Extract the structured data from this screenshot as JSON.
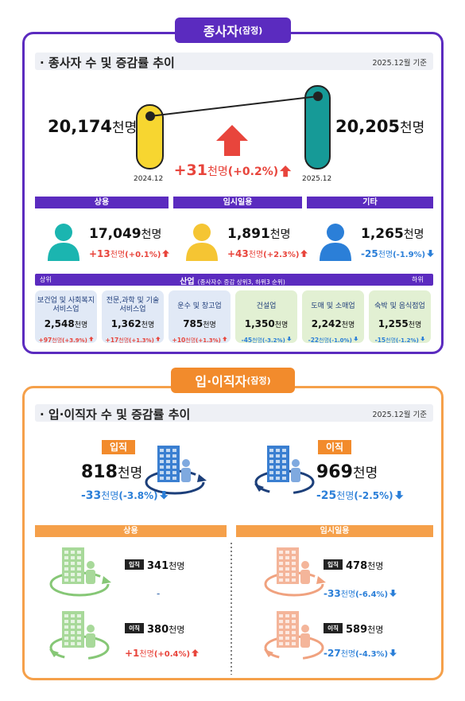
{
  "employees": {
    "badge": {
      "title": "종사자",
      "note": "(잠정)"
    },
    "header": {
      "title": "· 종사자 수 및 증감률 추이",
      "basis": "2025.12월 기준"
    },
    "total": {
      "before": {
        "number": "20,174",
        "unit": "천명",
        "period": "2024.12"
      },
      "after": {
        "number": "20,205",
        "unit": "천명",
        "period": "2025.12"
      },
      "change": {
        "number": "+31",
        "unit": "천명",
        "rate": "(+0.2%)"
      }
    },
    "types": [
      {
        "name": "상용",
        "number": "17,049",
        "unit": "천명",
        "change": {
          "number": "+13",
          "unit": "천명",
          "rate": "(+0.1%)"
        }
      },
      {
        "name": "임시일용",
        "number": "1,891",
        "unit": "천명",
        "change": {
          "number": "+43",
          "unit": "천명",
          "rate": "(+2.3%)"
        }
      },
      {
        "name": "기타",
        "number": "1,265",
        "unit": "천명",
        "change": {
          "number": "-25",
          "unit": "천명",
          "rate": "(-1.9%)"
        }
      }
    ],
    "industry": {
      "top": "상위",
      "title": "산업",
      "note": "(종사자수 증감 상위3, 하위3 순위)",
      "bottom": "하위",
      "items": [
        {
          "name": [
            "보건업 및 사회복지",
            "서비스업"
          ],
          "number": "2,548",
          "unit": "천명",
          "change": {
            "number": "+97",
            "unit": "천명",
            "rate": "(+3.9%)"
          }
        },
        {
          "name": [
            "전문,과학 및 기술",
            "서비스업"
          ],
          "number": "1,362",
          "unit": "천명",
          "change": {
            "number": "+17",
            "unit": "천명",
            "rate": "(+1.3%)"
          }
        },
        {
          "name": [
            "운수 및 창고업"
          ],
          "number": "785",
          "unit": "천명",
          "change": {
            "number": "+10",
            "unit": "천명",
            "rate": "(+1.3%)"
          }
        },
        {
          "name": [
            "건설업"
          ],
          "number": "1,350",
          "unit": "천명",
          "change": {
            "number": "-45",
            "unit": "천명",
            "rate": "(-3.2%)"
          }
        },
        {
          "name": [
            "도매 및 소매업"
          ],
          "number": "2,242",
          "unit": "천명",
          "change": {
            "number": "-22",
            "unit": "천명",
            "rate": "(-1.0%)"
          }
        },
        {
          "name": [
            "숙박 및 음식점업"
          ],
          "number": "1,255",
          "unit": "천명",
          "change": {
            "number": "-15",
            "unit": "천명",
            "rate": "(-1.2%)"
          }
        }
      ]
    }
  },
  "turnover": {
    "badge": {
      "title": "입·이직자",
      "note": "(잠정)"
    },
    "header": {
      "title": "· 입·이직자 수 및 증감률 추이",
      "basis": "2025.12월 기준"
    },
    "inflow": {
      "label": "입직",
      "number": "818",
      "unit": "천명",
      "change": {
        "number": "-33",
        "unit": "천명",
        "rate": "(-3.8%)"
      }
    },
    "outflow": {
      "label": "이직",
      "number": "969",
      "unit": "천명",
      "change": {
        "number": "-25",
        "unit": "천명",
        "rate": "(-2.5%)"
      }
    },
    "groups": [
      {
        "name": "상용",
        "inflow": {
          "label": "입직",
          "number": "341",
          "unit": "천명",
          "change": "-"
        },
        "outflow": {
          "label": "이직",
          "number": "380",
          "unit": "천명",
          "change": {
            "number": "+1",
            "unit": "천명",
            "rate": "(+0.4%)"
          }
        }
      },
      {
        "name": "임시일용",
        "inflow": {
          "label": "입직",
          "number": "478",
          "unit": "천명",
          "change": {
            "number": "-33",
            "unit": "천명",
            "rate": "(-6.4%)"
          }
        },
        "outflow": {
          "label": "이직",
          "number": "589",
          "unit": "천명",
          "change": {
            "number": "-27",
            "unit": "천명",
            "rate": "(-4.3%)"
          }
        }
      }
    ]
  }
}
